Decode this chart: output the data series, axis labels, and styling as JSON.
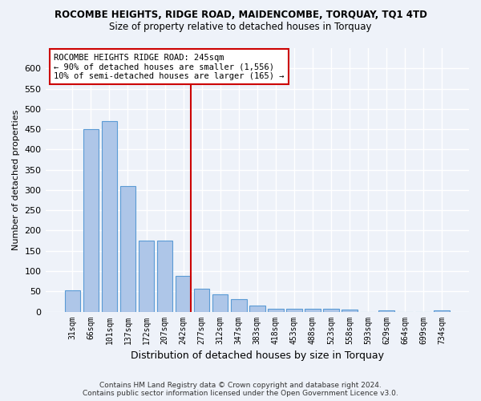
{
  "title": "ROCOMBE HEIGHTS, RIDGE ROAD, MAIDENCOMBE, TORQUAY, TQ1 4TD",
  "subtitle": "Size of property relative to detached houses in Torquay",
  "xlabel": "Distribution of detached houses by size in Torquay",
  "ylabel": "Number of detached properties",
  "categories": [
    "31sqm",
    "66sqm",
    "101sqm",
    "137sqm",
    "172sqm",
    "207sqm",
    "242sqm",
    "277sqm",
    "312sqm",
    "347sqm",
    "383sqm",
    "418sqm",
    "453sqm",
    "488sqm",
    "523sqm",
    "558sqm",
    "593sqm",
    "629sqm",
    "664sqm",
    "699sqm",
    "734sqm"
  ],
  "values": [
    53,
    450,
    470,
    310,
    175,
    175,
    88,
    57,
    43,
    30,
    15,
    8,
    8,
    7,
    8,
    6,
    0,
    4,
    0,
    0,
    4
  ],
  "bar_color": "#aec6e8",
  "bar_edge_color": "#5b9bd5",
  "vline_index": 6,
  "vline_color": "#cc0000",
  "ylim": [
    0,
    650
  ],
  "yticks": [
    0,
    50,
    100,
    150,
    200,
    250,
    300,
    350,
    400,
    450,
    500,
    550,
    600
  ],
  "annotation_title": "ROCOMBE HEIGHTS RIDGE ROAD: 245sqm",
  "annotation_line1": "← 90% of detached houses are smaller (1,556)",
  "annotation_line2": "10% of semi-detached houses are larger (165) →",
  "footer1": "Contains HM Land Registry data © Crown copyright and database right 2024.",
  "footer2": "Contains public sector information licensed under the Open Government Licence v3.0.",
  "background_color": "#eef2f9",
  "grid_color": "#ffffff"
}
